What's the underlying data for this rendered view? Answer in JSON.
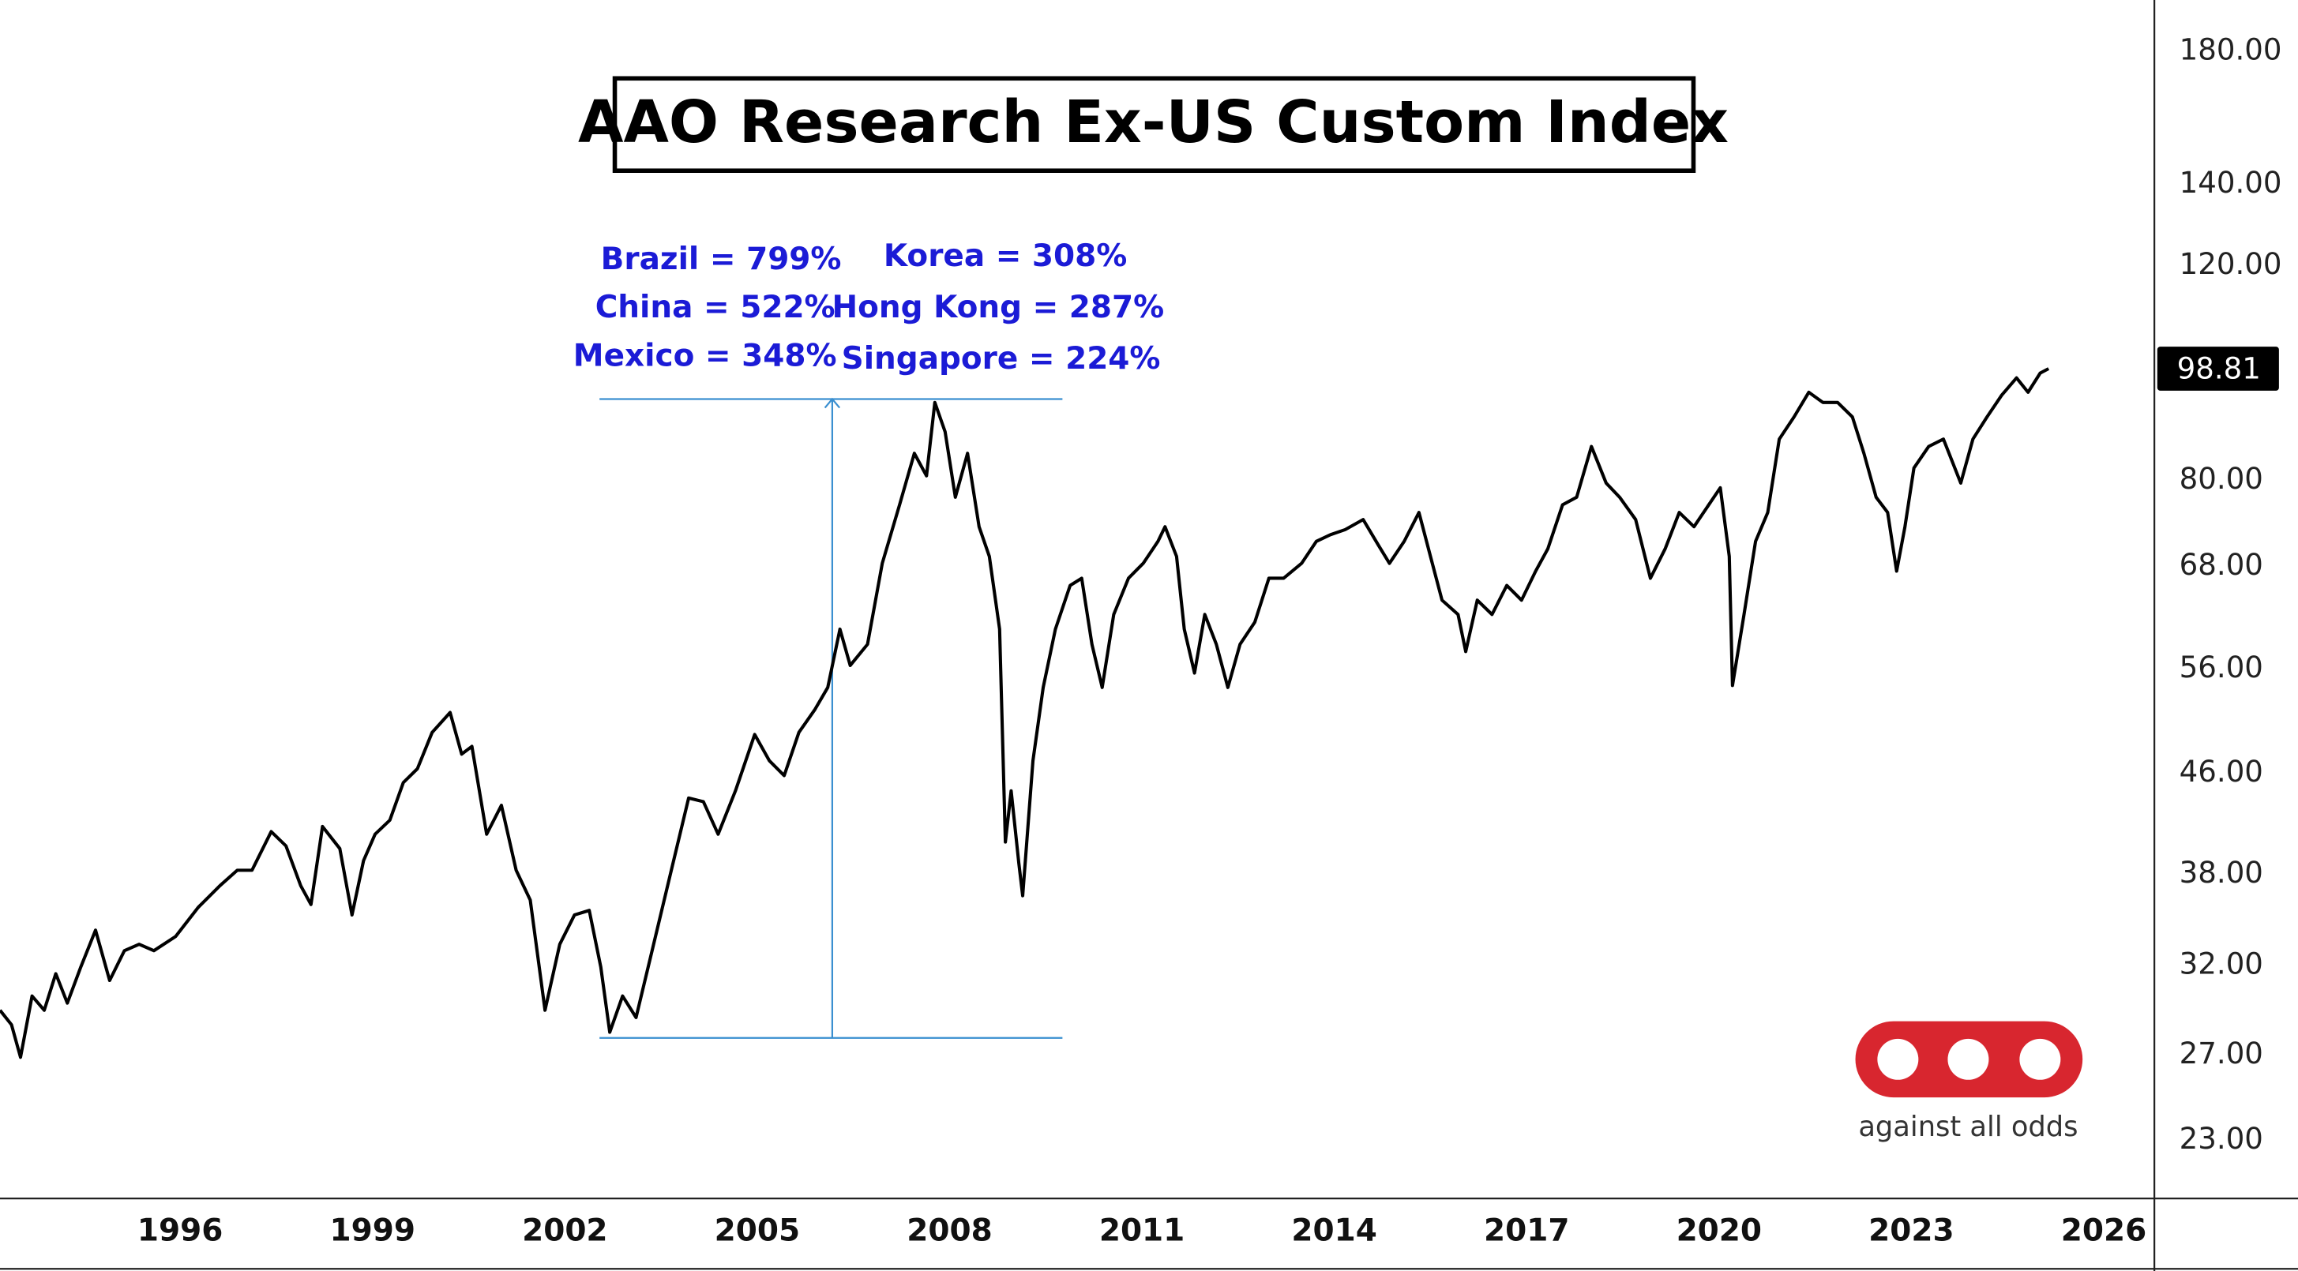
{
  "chart_data": {
    "type": "line",
    "title": "AAO Research Ex-US Custom Index",
    "annotations": [
      "Brazil = 799%",
      "China = 522%",
      "Mexico = 348%",
      "Korea = 308%",
      "Hong Kong = 287%",
      "Singapore = 224%"
    ],
    "logo_text": "against all odds",
    "color": "#000000",
    "log_y": true,
    "grid": false,
    "xlim": [
      1993.19,
      2026.79
    ],
    "xticks": [
      1996,
      1999,
      2002,
      2005,
      2008,
      2011,
      2014,
      2017,
      2020,
      2023,
      2026
    ],
    "ylim": [
      20.6,
      198.3
    ],
    "yticks": [
      {
        "value": 23,
        "label": "23.00"
      },
      {
        "value": 27,
        "label": "27.00"
      },
      {
        "value": 32,
        "label": "32.00"
      },
      {
        "value": 38,
        "label": "38.00"
      },
      {
        "value": 46,
        "label": "46.00"
      },
      {
        "value": 56,
        "label": "56.00"
      },
      {
        "value": 68,
        "label": "68.00"
      },
      {
        "value": 80,
        "label": "80.00"
      },
      {
        "value": 120,
        "label": "120.00"
      },
      {
        "value": 140,
        "label": "140.00"
      },
      {
        "value": 180,
        "label": "180.00"
      }
    ],
    "measure": {
      "x": [
        2002.54,
        2009.76
      ],
      "y": [
        27.9,
        93.3
      ],
      "arrow_x": 2006.17,
      "color": "#3a8fd0"
    },
    "x": [
      1993.19,
      1993.37,
      1993.51,
      1993.69,
      1993.88,
      1994.06,
      1994.24,
      1994.45,
      1994.68,
      1994.9,
      1995.13,
      1995.36,
      1995.59,
      1995.93,
      1996.28,
      1996.62,
      1996.89,
      1997.12,
      1997.42,
      1997.65,
      1997.88,
      1998.04,
      1998.22,
      1998.49,
      1998.68,
      1998.86,
      1999.04,
      1999.27,
      1999.48,
      1999.7,
      1999.93,
      2000.21,
      2000.39,
      2000.55,
      2000.78,
      2001.01,
      2001.24,
      2001.46,
      2001.69,
      2001.92,
      2002.15,
      2002.38,
      2002.56,
      2002.7,
      2002.9,
      2003.11,
      2003.36,
      2003.66,
      2003.93,
      2004.16,
      2004.39,
      2004.66,
      2004.96,
      2005.19,
      2005.42,
      2005.65,
      2005.9,
      2006.1,
      2006.29,
      2006.45,
      2006.72,
      2006.95,
      2007.22,
      2007.45,
      2007.64,
      2007.77,
      2007.93,
      2008.09,
      2008.28,
      2008.46,
      2008.62,
      2008.78,
      2008.87,
      2008.96,
      2009.08,
      2009.14,
      2009.3,
      2009.46,
      2009.65,
      2009.88,
      2010.06,
      2010.22,
      2010.38,
      2010.56,
      2010.79,
      2011.02,
      2011.25,
      2011.36,
      2011.54,
      2011.66,
      2011.82,
      2011.98,
      2012.16,
      2012.34,
      2012.53,
      2012.76,
      2012.98,
      2013.21,
      2013.49,
      2013.72,
      2013.94,
      2014.17,
      2014.45,
      2014.68,
      2014.86,
      2015.09,
      2015.32,
      2015.5,
      2015.68,
      2015.93,
      2016.05,
      2016.23,
      2016.46,
      2016.69,
      2016.92,
      2017.14,
      2017.33,
      2017.56,
      2017.78,
      2018.01,
      2018.24,
      2018.45,
      2018.7,
      2018.93,
      2019.16,
      2019.38,
      2019.61,
      2019.84,
      2020.02,
      2020.16,
      2020.21,
      2020.39,
      2020.57,
      2020.76,
      2020.94,
      2021.17,
      2021.4,
      2021.62,
      2021.85,
      2022.08,
      2022.26,
      2022.45,
      2022.63,
      2022.77,
      2022.9,
      2023.04,
      2023.27,
      2023.5,
      2023.77,
      2023.96,
      2024.18,
      2024.41,
      2024.64,
      2024.82,
      2025.01,
      2025.14
    ],
    "values": [
      29.4,
      28.6,
      26.9,
      30.2,
      29.4,
      31.5,
      29.8,
      31.9,
      34.2,
      31.1,
      32.9,
      33.3,
      32.9,
      33.8,
      35.7,
      37.2,
      38.3,
      38.3,
      41.2,
      40.1,
      37.2,
      35.9,
      41.6,
      39.9,
      35.2,
      39.0,
      41.0,
      42.1,
      45.2,
      46.4,
      49.7,
      51.6,
      47.7,
      48.4,
      41.0,
      43.3,
      38.3,
      36.2,
      29.4,
      33.3,
      35.2,
      35.5,
      31.9,
      28.2,
      30.2,
      29.0,
      32.9,
      38.3,
      43.9,
      43.6,
      41.0,
      44.5,
      49.5,
      47.1,
      45.8,
      49.7,
      51.9,
      54.1,
      60.4,
      56.4,
      58.7,
      68.4,
      76.4,
      84.2,
      80.7,
      92.7,
      87.7,
      77.5,
      84.2,
      73.3,
      69.3,
      60.4,
      40.4,
      44.5,
      38.8,
      36.5,
      47.1,
      54.1,
      60.4,
      65.6,
      66.5,
      58.7,
      54.1,
      62.1,
      66.5,
      68.4,
      71.3,
      73.3,
      69.3,
      60.4,
      55.6,
      62.1,
      58.7,
      54.1,
      58.7,
      61.2,
      66.5,
      66.5,
      68.4,
      71.3,
      72.2,
      72.9,
      74.3,
      70.9,
      68.4,
      71.3,
      75.3,
      69.3,
      63.8,
      62.1,
      57.9,
      63.8,
      62.1,
      65.6,
      63.8,
      67.4,
      70.3,
      76.4,
      77.5,
      85.3,
      79.6,
      77.5,
      74.3,
      66.5,
      70.3,
      75.3,
      73.3,
      76.4,
      78.9,
      69.3,
      54.3,
      62.1,
      71.3,
      75.3,
      86.5,
      90.2,
      94.5,
      92.7,
      92.7,
      90.2,
      84.2,
      77.5,
      75.3,
      67.4,
      73.3,
      81.9,
      85.3,
      86.5,
      79.6,
      86.5,
      90.2,
      94.0,
      97.1,
      94.5,
      98.0,
      98.81
    ]
  }
}
